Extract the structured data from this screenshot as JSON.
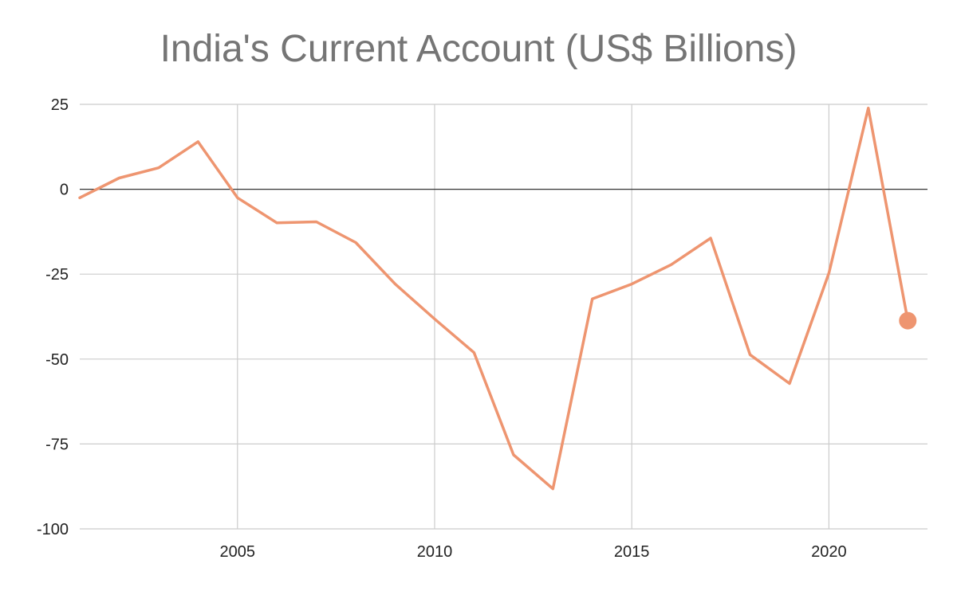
{
  "chart_data": {
    "type": "line",
    "title": "India's Current Account (US$ Billions)",
    "xlabel": "",
    "ylabel": "",
    "x": [
      2001,
      2002,
      2003,
      2004,
      2005,
      2006,
      2007,
      2008,
      2009,
      2010,
      2011,
      2012,
      2013,
      2014,
      2015,
      2016,
      2017,
      2018,
      2019,
      2020,
      2021,
      2022
    ],
    "series": [
      {
        "values": [
          -2.5,
          3.3,
          6.3,
          14.0,
          -2.5,
          -9.9,
          -9.6,
          -15.7,
          -27.9,
          -38.2,
          -48.1,
          -78.2,
          -88.2,
          -32.3,
          -27.9,
          -22.2,
          -14.4,
          -48.7,
          -57.2,
          -24.7,
          23.9,
          -38.7
        ],
        "color": "#ee9570",
        "end_marker": true
      }
    ],
    "xlim": [
      2001,
      2022.5
    ],
    "ylim": [
      -100,
      25
    ],
    "xticks": [
      2005,
      2010,
      2015,
      2020
    ],
    "yticks": [
      25,
      0,
      -25,
      -50,
      -75,
      -100
    ],
    "grid": true,
    "zero_line": true,
    "legend": "none"
  }
}
